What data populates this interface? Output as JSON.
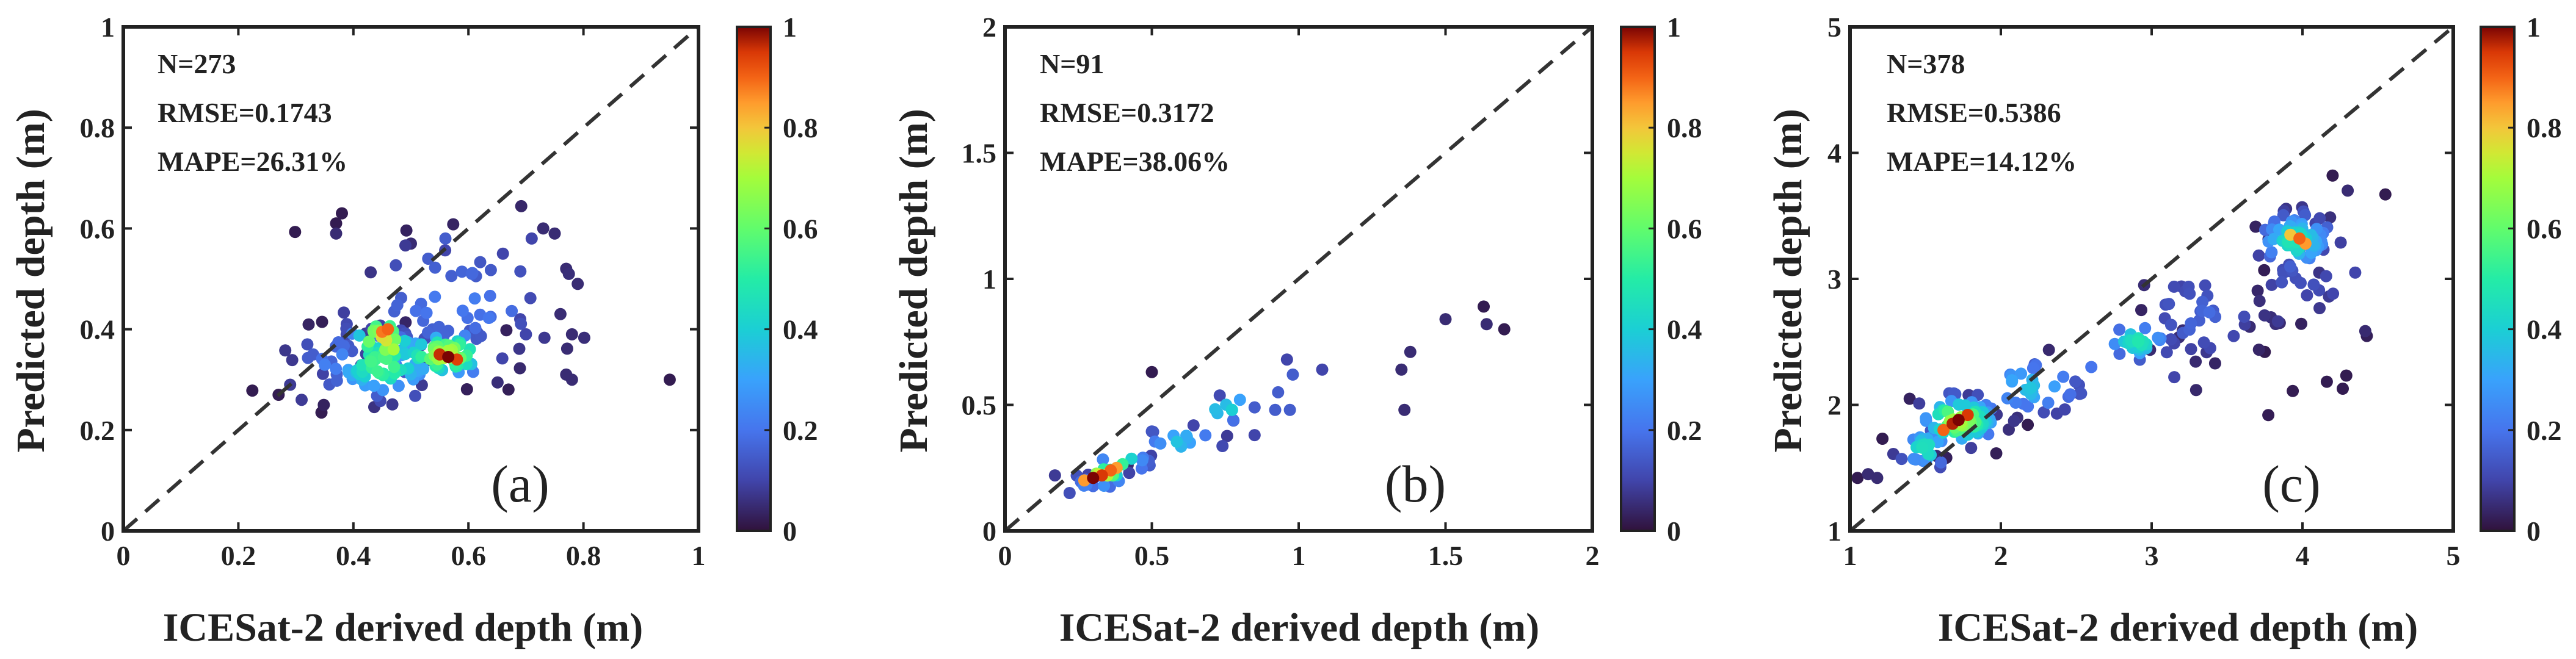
{
  "chart_data": [
    {
      "type": "scatter",
      "panel_label": "(a)",
      "xlabel": "ICESat-2 derived depth (m)",
      "ylabel": "Predicted depth (m)",
      "xlim": [
        0,
        1
      ],
      "ylim": [
        0,
        1
      ],
      "xticks": [
        {
          "v": 0,
          "label": "0"
        },
        {
          "v": 0.2,
          "label": "0.2"
        },
        {
          "v": 0.4,
          "label": "0.4"
        },
        {
          "v": 0.6,
          "label": "0.6"
        },
        {
          "v": 0.8,
          "label": "0.8"
        },
        {
          "v": 1,
          "label": "1"
        }
      ],
      "yticks": [
        {
          "v": 0,
          "label": "0"
        },
        {
          "v": 0.2,
          "label": "0.2"
        },
        {
          "v": 0.4,
          "label": "0.4"
        },
        {
          "v": 0.6,
          "label": "0.6"
        },
        {
          "v": 0.8,
          "label": "0.8"
        },
        {
          "v": 1,
          "label": "1"
        }
      ],
      "stats": [
        "N=273",
        "RMSE=0.1743",
        "MAPE=26.31%"
      ],
      "colorbar": {
        "min": 0,
        "max": 1,
        "ticks": [
          {
            "v": 0,
            "label": "0"
          },
          {
            "v": 0.2,
            "label": "0.2"
          },
          {
            "v": 0.4,
            "label": "0.4"
          },
          {
            "v": 0.6,
            "label": "0.6"
          },
          {
            "v": 0.8,
            "label": "0.8"
          },
          {
            "v": 1,
            "label": "1"
          }
        ]
      },
      "clusters": [
        {
          "cx": 0.45,
          "cy": 0.33,
          "sx": 0.05,
          "sy": 0.035,
          "n": 70,
          "d": 0.55
        },
        {
          "cx": 0.56,
          "cy": 0.35,
          "sx": 0.045,
          "sy": 0.025,
          "n": 55,
          "d": 0.7
        },
        {
          "cx": 0.45,
          "cy": 0.38,
          "sx": 0.03,
          "sy": 0.03,
          "n": 30,
          "d": 0.75
        },
        {
          "cx": 0.58,
          "cy": 0.45,
          "sx": 0.11,
          "sy": 0.07,
          "n": 55,
          "d": 0.2
        },
        {
          "cx": 0.36,
          "cy": 0.34,
          "sx": 0.04,
          "sy": 0.04,
          "n": 20,
          "d": 0.2
        }
      ],
      "points": [
        {
          "x": 0.565,
          "y": 0.345,
          "d": 1.0
        },
        {
          "x": 0.55,
          "y": 0.35,
          "d": 0.96
        },
        {
          "x": 0.58,
          "y": 0.34,
          "d": 0.94
        },
        {
          "x": 0.46,
          "y": 0.4,
          "d": 0.9
        },
        {
          "x": 0.45,
          "y": 0.395,
          "d": 0.88
        },
        {
          "x": 0.47,
          "y": 0.36,
          "d": 0.7
        },
        {
          "x": 0.37,
          "y": 0.61,
          "d": 0.02
        },
        {
          "x": 0.38,
          "y": 0.63,
          "d": 0.02
        },
        {
          "x": 0.37,
          "y": 0.59,
          "d": 0.05
        },
        {
          "x": 0.95,
          "y": 0.3,
          "d": 0.02
        },
        {
          "x": 0.27,
          "y": 0.27,
          "d": 0.02
        },
        {
          "x": 0.29,
          "y": 0.29,
          "d": 0.08
        },
        {
          "x": 0.73,
          "y": 0.6,
          "d": 0.05
        },
        {
          "x": 0.75,
          "y": 0.59,
          "d": 0.05
        },
        {
          "x": 0.71,
          "y": 0.58,
          "d": 0.1
        },
        {
          "x": 0.77,
          "y": 0.52,
          "d": 0.05
        },
        {
          "x": 0.79,
          "y": 0.49,
          "d": 0.05
        },
        {
          "x": 0.76,
          "y": 0.43,
          "d": 0.05
        },
        {
          "x": 0.78,
          "y": 0.39,
          "d": 0.05
        },
        {
          "x": 0.77,
          "y": 0.31,
          "d": 0.05
        },
        {
          "x": 0.78,
          "y": 0.3,
          "d": 0.05
        },
        {
          "x": 0.69,
          "y": 0.42,
          "d": 0.1
        },
        {
          "x": 0.7,
          "y": 0.39,
          "d": 0.1
        },
        {
          "x": 0.66,
          "y": 0.55,
          "d": 0.1
        },
        {
          "x": 0.56,
          "y": 0.58,
          "d": 0.15
        },
        {
          "x": 0.5,
          "y": 0.57,
          "d": 0.05
        },
        {
          "x": 0.53,
          "y": 0.54,
          "d": 0.15
        },
        {
          "x": 0.31,
          "y": 0.26,
          "d": 0.08
        },
        {
          "x": 0.33,
          "y": 0.35,
          "d": 0.15
        },
        {
          "x": 0.32,
          "y": 0.37,
          "d": 0.12
        }
      ]
    },
    {
      "type": "scatter",
      "panel_label": "(b)",
      "xlabel": "ICESat-2 derived depth (m)",
      "ylabel": "Predicted depth (m)",
      "xlim": [
        0,
        2
      ],
      "ylim": [
        0,
        2
      ],
      "xticks": [
        {
          "v": 0,
          "label": "0"
        },
        {
          "v": 0.5,
          "label": "0.5"
        },
        {
          "v": 1,
          "label": "1"
        },
        {
          "v": 1.5,
          "label": "1.5"
        },
        {
          "v": 2,
          "label": "2"
        }
      ],
      "yticks": [
        {
          "v": 0,
          "label": "0"
        },
        {
          "v": 0.5,
          "label": "0.5"
        },
        {
          "v": 1,
          "label": "1"
        },
        {
          "v": 1.5,
          "label": "1.5"
        },
        {
          "v": 2,
          "label": "2"
        }
      ],
      "stats": [
        "N=91",
        "RMSE=0.3172",
        "MAPE=38.06%"
      ],
      "colorbar": {
        "min": 0,
        "max": 1,
        "ticks": [
          {
            "v": 0,
            "label": "0"
          },
          {
            "v": 0.2,
            "label": "0.2"
          },
          {
            "v": 0.4,
            "label": "0.4"
          },
          {
            "v": 0.6,
            "label": "0.6"
          },
          {
            "v": 0.8,
            "label": "0.8"
          },
          {
            "v": 1,
            "label": "1"
          }
        ]
      },
      "clusters": [
        {
          "cx": 0.33,
          "cy": 0.22,
          "sx": 0.04,
          "sy": 0.025,
          "n": 18,
          "d": 0.75
        },
        {
          "cx": 0.4,
          "cy": 0.27,
          "sx": 0.05,
          "sy": 0.03,
          "n": 10,
          "d": 0.5
        },
        {
          "cx": 0.6,
          "cy": 0.35,
          "sx": 0.08,
          "sy": 0.04,
          "n": 14,
          "d": 0.35
        },
        {
          "cx": 0.75,
          "cy": 0.48,
          "sx": 0.05,
          "sy": 0.03,
          "n": 8,
          "d": 0.4
        },
        {
          "cx": 0.28,
          "cy": 0.18,
          "sx": 0.05,
          "sy": 0.03,
          "n": 8,
          "d": 0.2
        }
      ],
      "points": [
        {
          "x": 0.3,
          "y": 0.21,
          "d": 1.0
        },
        {
          "x": 0.33,
          "y": 0.22,
          "d": 0.95
        },
        {
          "x": 0.36,
          "y": 0.24,
          "d": 0.9
        },
        {
          "x": 0.27,
          "y": 0.2,
          "d": 0.85
        },
        {
          "x": 0.38,
          "y": 0.25,
          "d": 0.85
        },
        {
          "x": 0.17,
          "y": 0.22,
          "d": 0.08
        },
        {
          "x": 0.22,
          "y": 0.15,
          "d": 0.12
        },
        {
          "x": 0.5,
          "y": 0.63,
          "d": 0.02
        },
        {
          "x": 0.63,
          "y": 0.35,
          "d": 0.3
        },
        {
          "x": 0.85,
          "y": 0.49,
          "d": 0.15
        },
        {
          "x": 0.92,
          "y": 0.48,
          "d": 0.15
        },
        {
          "x": 0.97,
          "y": 0.48,
          "d": 0.15
        },
        {
          "x": 0.96,
          "y": 0.68,
          "d": 0.1
        },
        {
          "x": 0.98,
          "y": 0.62,
          "d": 0.15
        },
        {
          "x": 0.93,
          "y": 0.55,
          "d": 0.15
        },
        {
          "x": 1.08,
          "y": 0.64,
          "d": 0.1
        },
        {
          "x": 0.85,
          "y": 0.38,
          "d": 0.1
        },
        {
          "x": 1.36,
          "y": 0.48,
          "d": 0.05
        },
        {
          "x": 1.38,
          "y": 0.71,
          "d": 0.05
        },
        {
          "x": 1.35,
          "y": 0.64,
          "d": 0.05
        },
        {
          "x": 1.5,
          "y": 0.84,
          "d": 0.05
        },
        {
          "x": 1.63,
          "y": 0.89,
          "d": 0.02
        },
        {
          "x": 1.64,
          "y": 0.82,
          "d": 0.05
        },
        {
          "x": 1.7,
          "y": 0.8,
          "d": 0.02
        },
        {
          "x": 0.8,
          "y": 0.52,
          "d": 0.3
        }
      ]
    },
    {
      "type": "scatter",
      "panel_label": "(c)",
      "xlabel": "ICESat-2 derived depth (m)",
      "ylabel": "Predicted depth (m)",
      "xlim": [
        1,
        5
      ],
      "ylim": [
        1,
        5
      ],
      "xticks": [
        {
          "v": 1,
          "label": "1"
        },
        {
          "v": 2,
          "label": "2"
        },
        {
          "v": 3,
          "label": "3"
        },
        {
          "v": 4,
          "label": "4"
        },
        {
          "v": 5,
          "label": "5"
        }
      ],
      "yticks": [
        {
          "v": 1,
          "label": "1"
        },
        {
          "v": 2,
          "label": "2"
        },
        {
          "v": 3,
          "label": "3"
        },
        {
          "v": 4,
          "label": "4"
        },
        {
          "v": 5,
          "label": "5"
        }
      ],
      "stats": [
        "N=378",
        "RMSE=0.5386",
        "MAPE=14.12%"
      ],
      "colorbar": {
        "min": 0,
        "max": 1,
        "ticks": [
          {
            "v": 0,
            "label": "0"
          },
          {
            "v": 0.2,
            "label": "0.2"
          },
          {
            "v": 0.4,
            "label": "0.4"
          },
          {
            "v": 0.6,
            "label": "0.6"
          },
          {
            "v": 0.8,
            "label": "0.8"
          },
          {
            "v": 1,
            "label": "1"
          }
        ]
      },
      "clusters": [
        {
          "cx": 1.72,
          "cy": 1.88,
          "sx": 0.14,
          "sy": 0.1,
          "n": 70,
          "d": 0.7
        },
        {
          "cx": 1.5,
          "cy": 1.65,
          "sx": 0.1,
          "sy": 0.08,
          "n": 30,
          "d": 0.45
        },
        {
          "cx": 2.2,
          "cy": 2.15,
          "sx": 0.2,
          "sy": 0.12,
          "n": 40,
          "d": 0.35
        },
        {
          "cx": 2.9,
          "cy": 2.5,
          "sx": 0.12,
          "sy": 0.08,
          "n": 30,
          "d": 0.45
        },
        {
          "cx": 3.95,
          "cy": 3.3,
          "sx": 0.14,
          "sy": 0.12,
          "n": 60,
          "d": 0.45
        },
        {
          "cx": 3.3,
          "cy": 2.7,
          "sx": 0.25,
          "sy": 0.2,
          "n": 40,
          "d": 0.15
        },
        {
          "cx": 4.0,
          "cy": 3.1,
          "sx": 0.2,
          "sy": 0.35,
          "n": 40,
          "d": 0.12
        }
      ],
      "points": [
        {
          "x": 1.72,
          "y": 1.88,
          "d": 1.0
        },
        {
          "x": 1.68,
          "y": 1.85,
          "d": 0.97
        },
        {
          "x": 1.78,
          "y": 1.92,
          "d": 0.95
        },
        {
          "x": 1.62,
          "y": 1.8,
          "d": 0.9
        },
        {
          "x": 3.98,
          "y": 3.32,
          "d": 0.9
        },
        {
          "x": 4.02,
          "y": 3.28,
          "d": 0.85
        },
        {
          "x": 3.92,
          "y": 3.35,
          "d": 0.8
        },
        {
          "x": 1.05,
          "y": 1.42,
          "d": 0.02
        },
        {
          "x": 1.12,
          "y": 1.45,
          "d": 0.05
        },
        {
          "x": 1.18,
          "y": 1.42,
          "d": 0.05
        },
        {
          "x": 4.2,
          "y": 3.82,
          "d": 0.02
        },
        {
          "x": 4.3,
          "y": 3.7,
          "d": 0.05
        },
        {
          "x": 4.55,
          "y": 3.67,
          "d": 0.02
        },
        {
          "x": 4.35,
          "y": 3.05,
          "d": 0.1
        },
        {
          "x": 3.85,
          "y": 2.65,
          "d": 0.05
        },
        {
          "x": 3.75,
          "y": 2.42,
          "d": 0.02
        },
        {
          "x": 3.65,
          "y": 2.62,
          "d": 0.05
        },
        {
          "x": 2.95,
          "y": 2.95,
          "d": 0.05
        },
        {
          "x": 3.15,
          "y": 2.22,
          "d": 0.1
        },
        {
          "x": 2.6,
          "y": 2.3,
          "d": 0.2
        }
      ]
    }
  ]
}
